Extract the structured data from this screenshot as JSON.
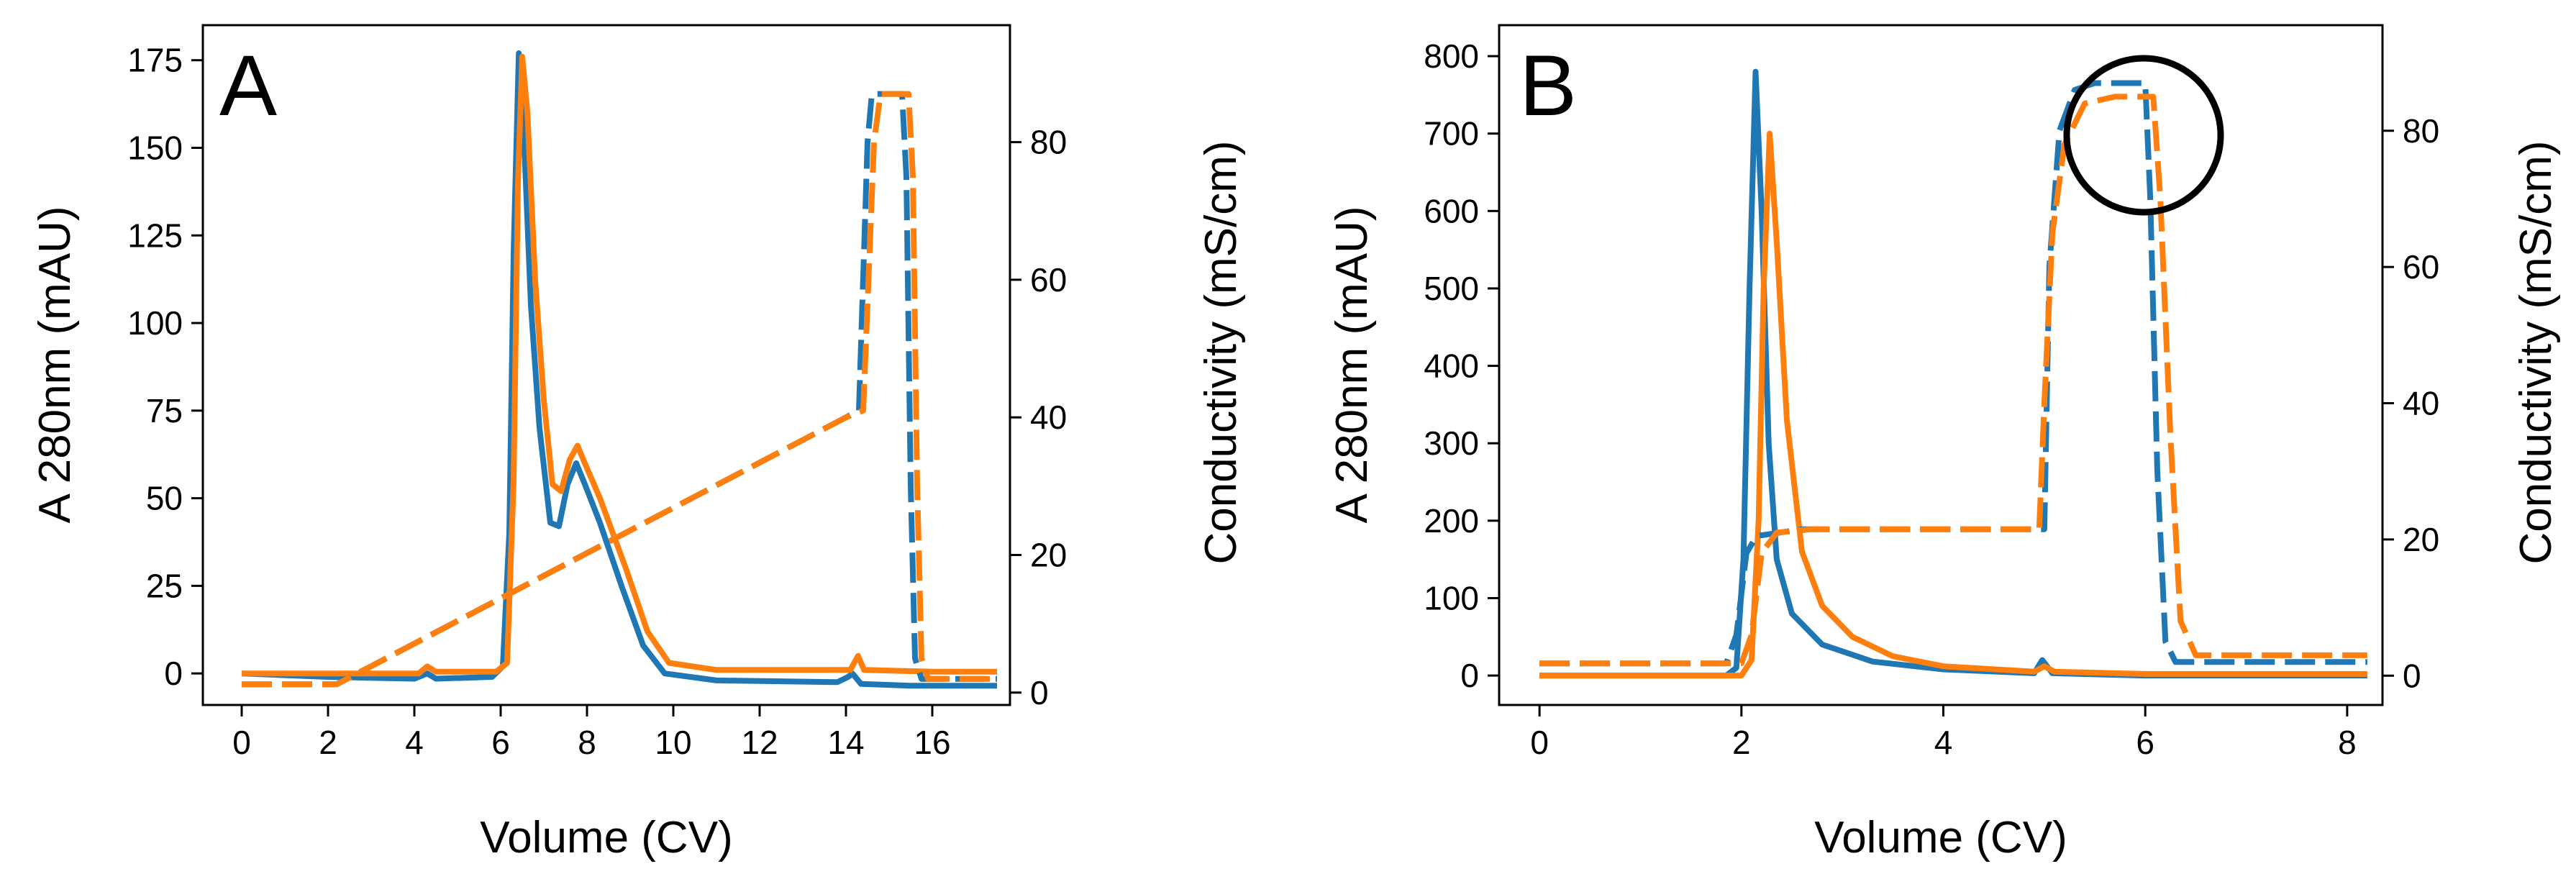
{
  "chart_data": [
    {
      "type": "line",
      "panel_label": "A",
      "xlabel": "Volume (CV)",
      "ylabel": "A 280nm (mAU)",
      "y2label": "Conductivity (mS/cm)",
      "xlim": [
        -0.9,
        17.8
      ],
      "ylim": [
        -9,
        185
      ],
      "y2lim": [
        -1.8,
        97
      ],
      "xticks": [
        0,
        2,
        4,
        6,
        8,
        10,
        12,
        14,
        16
      ],
      "yticks": [
        0,
        25,
        50,
        75,
        100,
        125,
        150,
        175
      ],
      "y2ticks": [
        0,
        20,
        40,
        60,
        80
      ],
      "series": [
        {
          "name": "A280 blue",
          "axis": "left",
          "style": "solid",
          "color": "#1f77b4",
          "points": [
            [
              0,
              0
            ],
            [
              2,
              -1
            ],
            [
              4,
              -1.5
            ],
            [
              4.3,
              0
            ],
            [
              4.5,
              -1.5
            ],
            [
              5.8,
              -1
            ],
            [
              6.05,
              2
            ],
            [
              6.2,
              40
            ],
            [
              6.3,
              120
            ],
            [
              6.42,
              177
            ],
            [
              6.55,
              150
            ],
            [
              6.7,
              105
            ],
            [
              6.9,
              70
            ],
            [
              7.15,
              43
            ],
            [
              7.35,
              42
            ],
            [
              7.55,
              54
            ],
            [
              7.75,
              60
            ],
            [
              7.95,
              54
            ],
            [
              8.3,
              43
            ],
            [
              8.8,
              25
            ],
            [
              9.3,
              8
            ],
            [
              9.8,
              0
            ],
            [
              11,
              -2
            ],
            [
              13.8,
              -2.5
            ],
            [
              14.05,
              -1
            ],
            [
              14.15,
              0
            ],
            [
              14.35,
              -3
            ],
            [
              15.5,
              -3.5
            ],
            [
              17.5,
              -3.5
            ]
          ]
        },
        {
          "name": "A280 orange",
          "axis": "left",
          "style": "solid",
          "color": "#ff7f0e",
          "points": [
            [
              0,
              0
            ],
            [
              2,
              0
            ],
            [
              4.1,
              0
            ],
            [
              4.3,
              2
            ],
            [
              4.5,
              0.5
            ],
            [
              5.9,
              0.5
            ],
            [
              6.15,
              3
            ],
            [
              6.3,
              55
            ],
            [
              6.4,
              140
            ],
            [
              6.5,
              176
            ],
            [
              6.62,
              160
            ],
            [
              6.8,
              112
            ],
            [
              7.0,
              78
            ],
            [
              7.2,
              54
            ],
            [
              7.4,
              52
            ],
            [
              7.6,
              61
            ],
            [
              7.78,
              65
            ],
            [
              7.95,
              60
            ],
            [
              8.3,
              50
            ],
            [
              8.9,
              30
            ],
            [
              9.4,
              12
            ],
            [
              9.9,
              3
            ],
            [
              11,
              1
            ],
            [
              14.1,
              1
            ],
            [
              14.28,
              5
            ],
            [
              14.42,
              1
            ],
            [
              16,
              0.5
            ],
            [
              17.5,
              0.5
            ]
          ]
        },
        {
          "name": "Conductivity blue",
          "axis": "right",
          "style": "dashed",
          "color": "#1f77b4",
          "points": [
            [
              0,
              1.2
            ],
            [
              2.2,
              1.2
            ],
            [
              14,
              40
            ],
            [
              14.3,
              41
            ],
            [
              14.5,
              80
            ],
            [
              14.6,
              87
            ],
            [
              15.3,
              87
            ],
            [
              15.4,
              75
            ],
            [
              15.5,
              30
            ],
            [
              15.6,
              5
            ],
            [
              15.75,
              2
            ],
            [
              17.5,
              2
            ]
          ]
        },
        {
          "name": "Conductivity orange",
          "axis": "right",
          "style": "dashed",
          "color": "#ff7f0e",
          "points": [
            [
              0,
              1.2
            ],
            [
              2.2,
              1.2
            ],
            [
              14,
              40
            ],
            [
              14.4,
              41
            ],
            [
              14.65,
              80
            ],
            [
              14.8,
              87
            ],
            [
              15.45,
              87
            ],
            [
              15.55,
              75
            ],
            [
              15.65,
              30
            ],
            [
              15.75,
              5
            ],
            [
              15.9,
              2
            ],
            [
              17.5,
              2
            ]
          ]
        }
      ]
    },
    {
      "type": "line",
      "panel_label": "B",
      "xlabel": "Volume (CV)",
      "ylabel": "A 280nm (mAU)",
      "y2label": "Conductivity (mS/cm)",
      "xlim": [
        -0.4,
        8.35
      ],
      "ylim": [
        -38,
        840
      ],
      "y2lim": [
        -4.3,
        95.5
      ],
      "xticks": [
        0,
        2,
        4,
        6,
        8
      ],
      "yticks": [
        0,
        100,
        200,
        300,
        400,
        500,
        600,
        700,
        800
      ],
      "y2ticks": [
        0,
        20,
        40,
        60,
        80
      ],
      "annotation": "circle around conductivity plateau",
      "series": [
        {
          "name": "A280 blue",
          "axis": "left",
          "style": "solid",
          "color": "#1f77b4",
          "points": [
            [
              0,
              0
            ],
            [
              1.85,
              0
            ],
            [
              1.95,
              10
            ],
            [
              2.02,
              150
            ],
            [
              2.08,
              500
            ],
            [
              2.14,
              780
            ],
            [
              2.2,
              600
            ],
            [
              2.27,
              300
            ],
            [
              2.35,
              150
            ],
            [
              2.5,
              80
            ],
            [
              2.8,
              40
            ],
            [
              3.3,
              18
            ],
            [
              4,
              8
            ],
            [
              4.9,
              3
            ],
            [
              4.98,
              20
            ],
            [
              5.08,
              3
            ],
            [
              6,
              0
            ],
            [
              8.2,
              0
            ]
          ]
        },
        {
          "name": "A280 orange",
          "axis": "left",
          "style": "solid",
          "color": "#ff7f0e",
          "points": [
            [
              0,
              0
            ],
            [
              2,
              0
            ],
            [
              2.1,
              20
            ],
            [
              2.17,
              200
            ],
            [
              2.22,
              500
            ],
            [
              2.28,
              700
            ],
            [
              2.35,
              560
            ],
            [
              2.45,
              330
            ],
            [
              2.6,
              160
            ],
            [
              2.8,
              90
            ],
            [
              3.1,
              50
            ],
            [
              3.5,
              25
            ],
            [
              4,
              12
            ],
            [
              4.9,
              5
            ],
            [
              5.0,
              12
            ],
            [
              5.1,
              5
            ],
            [
              6,
              2
            ],
            [
              8.2,
              2
            ]
          ]
        },
        {
          "name": "Conductivity blue",
          "axis": "right",
          "style": "dashed",
          "color": "#1f77b4",
          "points": [
            [
              0,
              1.8
            ],
            [
              1.85,
              1.8
            ],
            [
              1.95,
              6
            ],
            [
              2.05,
              18
            ],
            [
              2.15,
              20.5
            ],
            [
              2.6,
              21.5
            ],
            [
              5.0,
              21.5
            ],
            [
              5.05,
              60
            ],
            [
              5.15,
              80
            ],
            [
              5.3,
              86
            ],
            [
              5.5,
              87
            ],
            [
              6.0,
              87
            ],
            [
              6.05,
              70
            ],
            [
              6.12,
              30
            ],
            [
              6.2,
              5
            ],
            [
              6.3,
              2
            ],
            [
              8.2,
              2
            ]
          ]
        },
        {
          "name": "Conductivity orange",
          "axis": "right",
          "style": "dashed",
          "color": "#ff7f0e",
          "points": [
            [
              0,
              1.8
            ],
            [
              2.0,
              1.8
            ],
            [
              2.1,
              6
            ],
            [
              2.2,
              18
            ],
            [
              2.35,
              21
            ],
            [
              2.7,
              21.5
            ],
            [
              4.95,
              21.5
            ],
            [
              5.0,
              40
            ],
            [
              5.08,
              65
            ],
            [
              5.2,
              78
            ],
            [
              5.4,
              84
            ],
            [
              5.7,
              85
            ],
            [
              6.08,
              85
            ],
            [
              6.15,
              70
            ],
            [
              6.25,
              35
            ],
            [
              6.35,
              8
            ],
            [
              6.5,
              3
            ],
            [
              8.2,
              3
            ]
          ]
        }
      ]
    }
  ]
}
